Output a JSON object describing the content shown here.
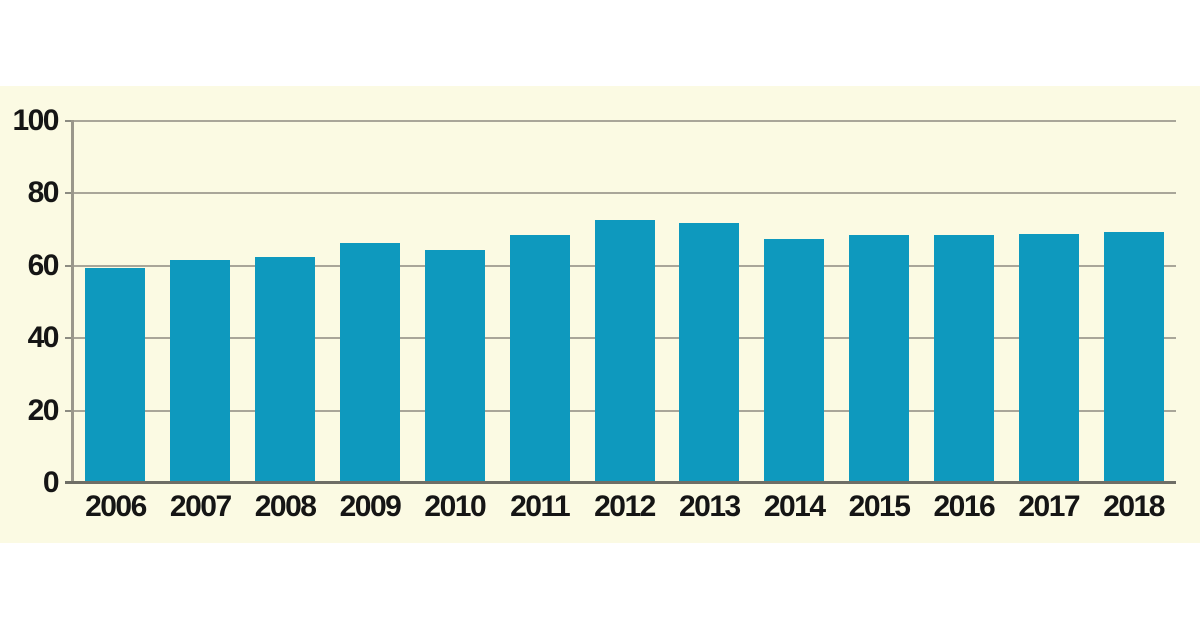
{
  "chart_data": {
    "type": "bar",
    "title": "",
    "xlabel": "",
    "ylabel": "",
    "categories": [
      "2006",
      "2007",
      "2008",
      "2009",
      "2010",
      "2011",
      "2012",
      "2013",
      "2014",
      "2015",
      "2016",
      "2017",
      "2018"
    ],
    "values": [
      59.4,
      61.6,
      62.3,
      66.4,
      64.4,
      68.6,
      72.6,
      71.8,
      67.4,
      68.5,
      68.6,
      68.8,
      69.4
    ],
    "ylim": [
      0,
      100
    ],
    "yticks": [
      0,
      20,
      40,
      60,
      80,
      100
    ],
    "grid": true,
    "legend": false,
    "colors": {
      "bar": "#0E99BE",
      "plot_background": "#FBFAE3",
      "page_background": "#FFFFFF",
      "gridline": "#A9A699",
      "tick": "#8C8C82",
      "axis_left": "#9A978B",
      "axis_bottom": "#6E6E66",
      "text": "#151515"
    }
  }
}
